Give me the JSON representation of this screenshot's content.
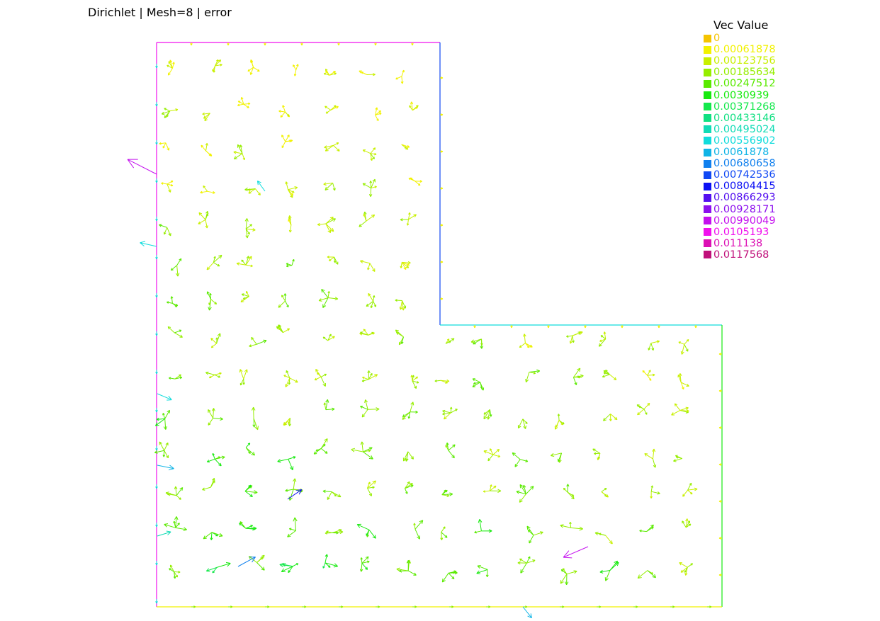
{
  "title": "Dirichlet | Mesh=8 | error",
  "legend": {
    "title": "Vec Value",
    "entries": [
      {
        "label": "0",
        "color": "#f5c400"
      },
      {
        "label": "0.00061878",
        "color": "#f2f200"
      },
      {
        "label": "0.00123756",
        "color": "#c8f000"
      },
      {
        "label": "0.00185634",
        "color": "#96ee00"
      },
      {
        "label": "0.00247512",
        "color": "#5aea00"
      },
      {
        "label": "0.0030939",
        "color": "#18ea10"
      },
      {
        "label": "0.00371268",
        "color": "#14e84c"
      },
      {
        "label": "0.00433146",
        "color": "#10e082"
      },
      {
        "label": "0.00495024",
        "color": "#10dcb6"
      },
      {
        "label": "0.00556902",
        "color": "#10dcdc"
      },
      {
        "label": "0.0061878",
        "color": "#10b4e6"
      },
      {
        "label": "0.00680658",
        "color": "#1080ee"
      },
      {
        "label": "0.00742536",
        "color": "#1048f4"
      },
      {
        "label": "0.00804415",
        "color": "#0c10f4"
      },
      {
        "label": "0.00866293",
        "color": "#5410f0"
      },
      {
        "label": "0.00928171",
        "color": "#8c10ee"
      },
      {
        "label": "0.00990049",
        "color": "#c410ee"
      },
      {
        "label": "0.0105193",
        "color": "#f010ee"
      },
      {
        "label": "0.011138",
        "color": "#dc10b4"
      },
      {
        "label": "0.0117568",
        "color": "#c0107a"
      }
    ]
  },
  "boundary_colors": {
    "left": "#f010ee",
    "top": "#f010ee",
    "inner_vertical": "#1048f4",
    "inner_horizontal": "#10dcdc",
    "right": "#18ea10",
    "bottom": "#f2f200"
  }
}
